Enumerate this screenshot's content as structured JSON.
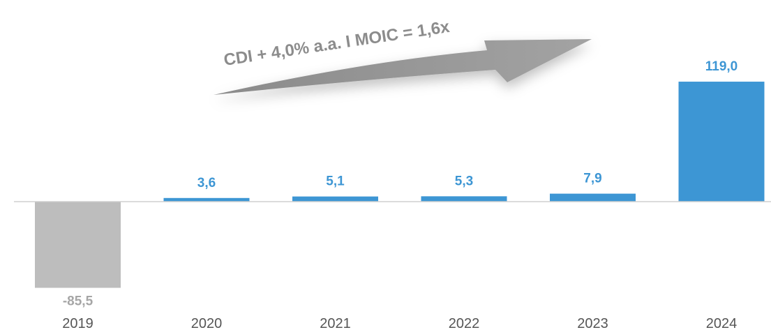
{
  "chart_data": {
    "type": "bar",
    "categories": [
      "2019",
      "2020",
      "2021",
      "2022",
      "2023",
      "2024"
    ],
    "values": [
      -85.5,
      3.6,
      5.1,
      5.3,
      7.9,
      119.0
    ],
    "value_labels": [
      "-85,5",
      "3,6",
      "5,1",
      "5,3",
      "7,9",
      "119,0"
    ],
    "title": "",
    "xlabel": "",
    "ylabel": "",
    "grid": false,
    "annotation": "CDI + 4,0% a.a. I MOIC = 1,6x"
  },
  "colors": {
    "positive": "#3d96d4",
    "negative": "#bdbdbd",
    "positive_label": "#3d96d4",
    "negative_label": "#a6a6a6",
    "axis": "#cfcfcf",
    "arrow": "#959595"
  }
}
